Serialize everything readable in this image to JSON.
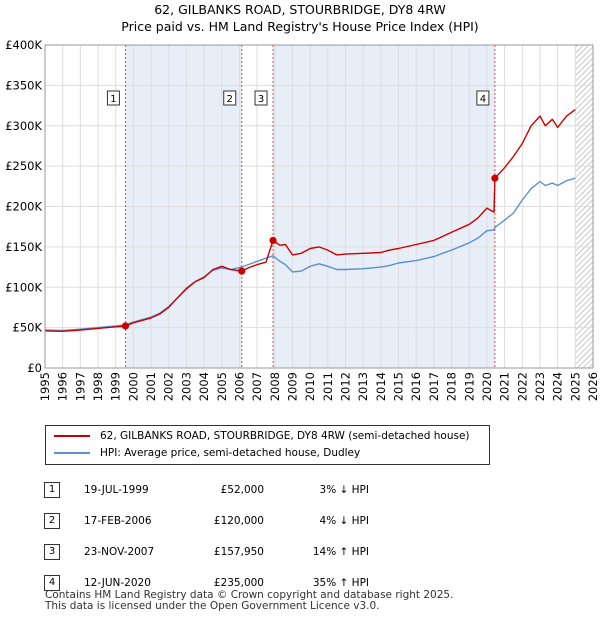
{
  "title_line1": "62, GILBANKS ROAD, STOURBRIDGE, DY8 4RW",
  "title_line2": "Price paid vs. HM Land Registry's House Price Index (HPI)",
  "colors": {
    "property": "#cc0000",
    "hpi": "#5b8fd0",
    "shade": "#e8eef8",
    "grid": "#dddddd",
    "marker_box": "#333333"
  },
  "legend": {
    "property_label": "62, GILBANKS ROAD, STOURBRIDGE, DY8 4RW (semi-detached house)",
    "hpi_label": "HPI: Average price, semi-detached house, Dudley"
  },
  "sales": [
    {
      "num": "1",
      "date": "19-JUL-1999",
      "price": "£52,000",
      "change": "3% ↓ HPI"
    },
    {
      "num": "2",
      "date": "17-FEB-2006",
      "price": "£120,000",
      "change": "4% ↓ HPI"
    },
    {
      "num": "3",
      "date": "23-NOV-2007",
      "price": "£157,950",
      "change": "14% ↑ HPI"
    },
    {
      "num": "4",
      "date": "12-JUN-2020",
      "price": "£235,000",
      "change": "35% ↑ HPI"
    }
  ],
  "footer": {
    "line1": "Contains HM Land Registry data © Crown copyright and database right 2025.",
    "line2": "This data is licensed under the Open Government Licence v3.0."
  },
  "chart_data": {
    "type": "line",
    "title": "62, GILBANKS ROAD, STOURBRIDGE, DY8 4RW — Price paid vs. HM Land Registry's House Price Index (HPI)",
    "xlabel": "",
    "ylabel": "",
    "xlim": [
      1995,
      2026
    ],
    "ylim": [
      0,
      400000
    ],
    "x_ticks": [
      1995,
      1996,
      1997,
      1998,
      1999,
      2000,
      2001,
      2002,
      2003,
      2004,
      2005,
      2006,
      2007,
      2008,
      2009,
      2010,
      2011,
      2012,
      2013,
      2014,
      2015,
      2016,
      2017,
      2018,
      2019,
      2020,
      2021,
      2022,
      2023,
      2024,
      2025,
      2026
    ],
    "y_ticks": [
      {
        "value": 0,
        "label": "£0"
      },
      {
        "value": 50000,
        "label": "£50K"
      },
      {
        "value": 100000,
        "label": "£100K"
      },
      {
        "value": 150000,
        "label": "£150K"
      },
      {
        "value": 200000,
        "label": "£200K"
      },
      {
        "value": 250000,
        "label": "£250K"
      },
      {
        "value": 300000,
        "label": "£300K"
      },
      {
        "value": 350000,
        "label": "£350K"
      },
      {
        "value": 400000,
        "label": "£400K"
      }
    ],
    "grid": true,
    "shaded_periods": [
      [
        1999.55,
        2006.13
      ],
      [
        2007.9,
        2020.45
      ]
    ],
    "forecast_from": 2025.0,
    "series": [
      {
        "name": "property",
        "label": "62, GILBANKS ROAD, STOURBRIDGE, DY8 4RW (semi-detached house)",
        "points": [
          [
            1995.0,
            46000
          ],
          [
            1996.0,
            45500
          ],
          [
            1997.0,
            47000
          ],
          [
            1998.0,
            49000
          ],
          [
            1999.0,
            51000
          ],
          [
            1999.55,
            52000
          ],
          [
            2000.0,
            56000
          ],
          [
            2001.0,
            62000
          ],
          [
            2001.5,
            67000
          ],
          [
            2002.0,
            75000
          ],
          [
            2002.5,
            87000
          ],
          [
            2003.0,
            98000
          ],
          [
            2003.5,
            107000
          ],
          [
            2004.0,
            112000
          ],
          [
            2004.5,
            122000
          ],
          [
            2005.0,
            126000
          ],
          [
            2005.5,
            122000
          ],
          [
            2006.13,
            120000
          ],
          [
            2006.5,
            124000
          ],
          [
            2007.0,
            128000
          ],
          [
            2007.5,
            131000
          ],
          [
            2007.9,
            157950
          ],
          [
            2008.3,
            152000
          ],
          [
            2008.6,
            153000
          ],
          [
            2009.0,
            140000
          ],
          [
            2009.5,
            142000
          ],
          [
            2010.0,
            148000
          ],
          [
            2010.5,
            150000
          ],
          [
            2011.0,
            146000
          ],
          [
            2011.5,
            140000
          ],
          [
            2012.0,
            141000
          ],
          [
            2013.0,
            142000
          ],
          [
            2014.0,
            143000
          ],
          [
            2014.5,
            146000
          ],
          [
            2015.0,
            148000
          ],
          [
            2016.0,
            153000
          ],
          [
            2017.0,
            158000
          ],
          [
            2017.5,
            163000
          ],
          [
            2018.0,
            168000
          ],
          [
            2019.0,
            178000
          ],
          [
            2019.5,
            186000
          ],
          [
            2020.0,
            198000
          ],
          [
            2020.4,
            193000
          ],
          [
            2020.45,
            235000
          ],
          [
            2021.0,
            248000
          ],
          [
            2021.5,
            262000
          ],
          [
            2022.0,
            278000
          ],
          [
            2022.5,
            300000
          ],
          [
            2023.0,
            312000
          ],
          [
            2023.3,
            300000
          ],
          [
            2023.7,
            308000
          ],
          [
            2024.0,
            298000
          ],
          [
            2024.5,
            312000
          ],
          [
            2025.0,
            320000
          ]
        ]
      },
      {
        "name": "hpi",
        "label": "HPI: Average price, semi-detached house, Dudley",
        "points": [
          [
            1995.0,
            47000
          ],
          [
            1996.0,
            46500
          ],
          [
            1997.0,
            48000
          ],
          [
            1998.0,
            50000
          ],
          [
            1999.0,
            52000
          ],
          [
            1999.55,
            53500
          ],
          [
            2000.0,
            57000
          ],
          [
            2001.0,
            63000
          ],
          [
            2001.5,
            68000
          ],
          [
            2002.0,
            76000
          ],
          [
            2002.5,
            87000
          ],
          [
            2003.0,
            99000
          ],
          [
            2003.5,
            107000
          ],
          [
            2004.0,
            113000
          ],
          [
            2004.5,
            121000
          ],
          [
            2005.0,
            124000
          ],
          [
            2005.5,
            122000
          ],
          [
            2006.13,
            125000
          ],
          [
            2006.5,
            128000
          ],
          [
            2007.0,
            132000
          ],
          [
            2007.5,
            136000
          ],
          [
            2007.9,
            139000
          ],
          [
            2008.3,
            132000
          ],
          [
            2008.6,
            128000
          ],
          [
            2009.0,
            119000
          ],
          [
            2009.5,
            120000
          ],
          [
            2010.0,
            126000
          ],
          [
            2010.5,
            129000
          ],
          [
            2011.0,
            126000
          ],
          [
            2011.5,
            122000
          ],
          [
            2012.0,
            122000
          ],
          [
            2013.0,
            123000
          ],
          [
            2014.0,
            125000
          ],
          [
            2014.5,
            127000
          ],
          [
            2015.0,
            130000
          ],
          [
            2016.0,
            133000
          ],
          [
            2017.0,
            138000
          ],
          [
            2017.5,
            142000
          ],
          [
            2018.0,
            146000
          ],
          [
            2019.0,
            155000
          ],
          [
            2019.5,
            161000
          ],
          [
            2020.0,
            170000
          ],
          [
            2020.4,
            171000
          ],
          [
            2020.45,
            174000
          ],
          [
            2021.0,
            183000
          ],
          [
            2021.5,
            192000
          ],
          [
            2022.0,
            208000
          ],
          [
            2022.5,
            222000
          ],
          [
            2023.0,
            231000
          ],
          [
            2023.3,
            226000
          ],
          [
            2023.7,
            229000
          ],
          [
            2024.0,
            226000
          ],
          [
            2024.5,
            232000
          ],
          [
            2025.0,
            235000
          ]
        ]
      }
    ],
    "sale_markers": [
      {
        "num": "1",
        "x": 1999.55,
        "y": 52000
      },
      {
        "num": "2",
        "x": 2006.13,
        "y": 120000
      },
      {
        "num": "3",
        "x": 2007.9,
        "y": 157950
      },
      {
        "num": "4",
        "x": 2020.45,
        "y": 235000
      }
    ]
  }
}
